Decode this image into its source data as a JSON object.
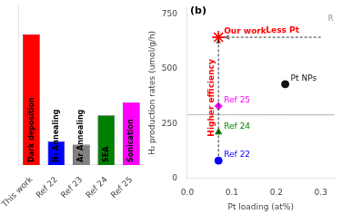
{
  "chart_data": [
    {
      "type": "bar",
      "categories": [
        "This work",
        "Ref 22",
        "Ref 23",
        "Ref 24",
        "Ref 25"
      ],
      "values": [
        1.0,
        0.18,
        0.155,
        0.38,
        0.48
      ],
      "colors": [
        "#ff0000",
        "#0000ff",
        "#808080",
        "#008000",
        "#ff00ff"
      ],
      "annotations": [
        "Dark deposition",
        "N₂ Annealing",
        "Ar Annealing",
        "SEA",
        "Sonication"
      ],
      "ylim": [
        0,
        1.22
      ],
      "tick_labels": "x",
      "grid": false
    },
    {
      "type": "scatter",
      "xlabel": "Pt loading (at%)",
      "ylabel": "H₂ production rates (umol/g/h)",
      "series": [
        {
          "name": "Our work",
          "color": "#ff0000",
          "marker": "star",
          "x": [
            0.07
          ],
          "values": [
            645
          ]
        },
        {
          "name": "Ref 25",
          "color": "#ff00ff",
          "marker": "diamond",
          "x": [
            0.07
          ],
          "values": [
            330
          ]
        },
        {
          "name": "Ref 24",
          "color": "#008000",
          "marker": "triangle",
          "x": [
            0.07
          ],
          "values": [
            210
          ]
        },
        {
          "name": "Ref 22",
          "color": "#0000ff",
          "marker": "circle",
          "x": [
            0.07
          ],
          "values": [
            80
          ]
        },
        {
          "name": "Pt NPs",
          "color": "#111111",
          "marker": "circle",
          "x": [
            0.22
          ],
          "values": [
            430
          ]
        }
      ],
      "xlim": [
        0.0,
        0.33
      ],
      "xticks": [
        {
          "value": 0.0,
          "label": "0.0"
        },
        0.1,
        0.2,
        0.3
      ],
      "ylim": [
        0,
        780
      ],
      "yticks": [
        0,
        250,
        500,
        750
      ],
      "grid": false,
      "ellipse": {
        "x": 0.175,
        "y": 290,
        "width": 0.32,
        "height": 620,
        "angle": 25
      },
      "arrows": [
        {
          "x": [
            0.07,
            0.07
          ],
          "y": [
            100,
            635
          ]
        },
        {
          "x": [
            0.3,
            0.085
          ],
          "y": [
            645,
            645
          ]
        }
      ],
      "annotations": [
        {
          "text": "Higher efficiency",
          "color": "red"
        },
        {
          "text": "Less Pt",
          "color": "red"
        },
        {
          "text": "(b)"
        },
        {
          "text": "R",
          "color": "#888888"
        }
      ]
    }
  ]
}
